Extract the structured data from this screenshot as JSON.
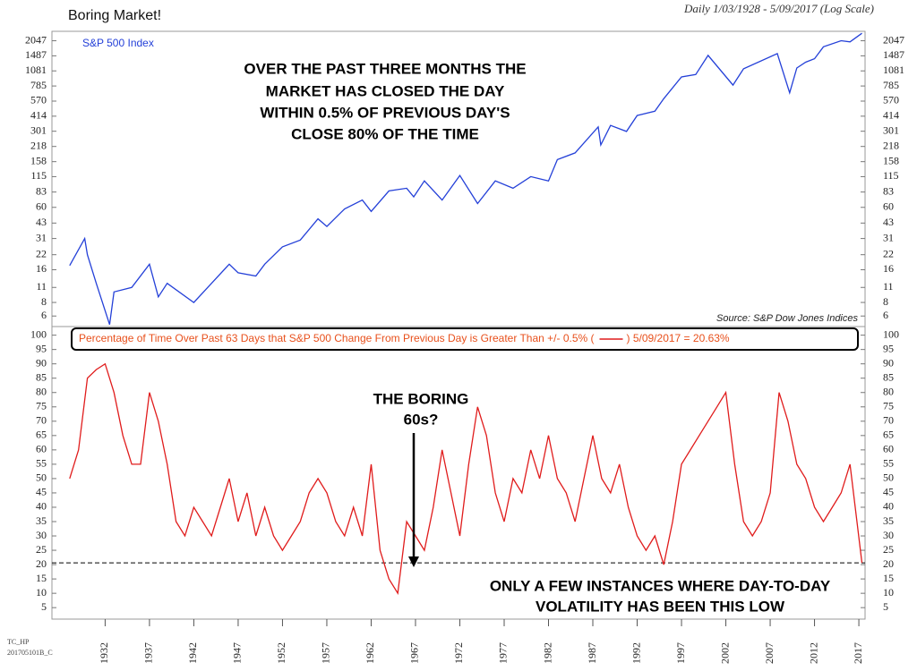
{
  "chart_data": [
    {
      "type": "line",
      "title": "Boring Market!",
      "subtitle": "Daily 1/03/1928 - 5/09/2017 (Log Scale)",
      "log_scale": true,
      "x": [
        1928,
        1929.7,
        1930,
        1931,
        1932.5,
        1933,
        1935,
        1937,
        1938,
        1939,
        1942,
        1944,
        1946,
        1947,
        1949,
        1950,
        1952,
        1954,
        1956,
        1957,
        1959,
        1961,
        1962,
        1964,
        1966,
        1966.8,
        1968,
        1970,
        1972,
        1974,
        1976,
        1978,
        1980,
        1982,
        1983,
        1985,
        1987.6,
        1987.9,
        1989,
        1990.8,
        1992,
        1994,
        1995,
        1997,
        1998.6,
        2000,
        2002.8,
        2004,
        2007.8,
        2009.2,
        2010,
        2011,
        2012,
        2013,
        2015,
        2016,
        2017.35
      ],
      "series": [
        {
          "name": "S&P 500 Index",
          "color": "#2440d8",
          "values": [
            17.5,
            31,
            22,
            12,
            5,
            10,
            11,
            18,
            9,
            12,
            8,
            12,
            18,
            15,
            14,
            18,
            26,
            30,
            47,
            40,
            58,
            70,
            55,
            85,
            90,
            75,
            105,
            70,
            118,
            65,
            105,
            90,
            115,
            105,
            165,
            190,
            330,
            225,
            340,
            300,
            420,
            460,
            600,
            950,
            1000,
            1500,
            800,
            1130,
            1560,
            680,
            1150,
            1300,
            1400,
            1800,
            2050,
            2000,
            2400
          ]
        }
      ],
      "xlim": [
        1926,
        2017.7
      ],
      "ylim": [
        4.8,
        2500
      ],
      "yticks": [
        6,
        8,
        11,
        16,
        22,
        31,
        43,
        60,
        83,
        115,
        158,
        218,
        301,
        414,
        570,
        785,
        1081,
        1487,
        2047
      ],
      "annotation": [
        "OVER THE PAST THREE MONTHS THE",
        "MARKET HAS CLOSED THE DAY",
        "WITHIN 0.5% OF PREVIOUS DAY'S",
        "CLOSE 80% OF THE TIME"
      ],
      "source": "Source: S&P Dow Jones Indices"
    },
    {
      "type": "line",
      "x": [
        1928,
        1929,
        1930,
        1931,
        1932,
        1933,
        1934,
        1935,
        1936,
        1937,
        1938,
        1939,
        1940,
        1941,
        1942,
        1943,
        1944,
        1945,
        1946,
        1947,
        1948,
        1949,
        1950,
        1951,
        1952,
        1953,
        1954,
        1955,
        1956,
        1957,
        1958,
        1959,
        1960,
        1961,
        1962,
        1963,
        1964,
        1965,
        1966,
        1967,
        1968,
        1969,
        1970,
        1971,
        1972,
        1973,
        1974,
        1975,
        1976,
        1977,
        1978,
        1979,
        1980,
        1981,
        1982,
        1983,
        1984,
        1985,
        1986,
        1987,
        1988,
        1989,
        1990,
        1991,
        1992,
        1993,
        1994,
        1995,
        1996,
        1997,
        1998,
        1999,
        2000,
        2001,
        2002,
        2003,
        2004,
        2005,
        2006,
        2007,
        2008,
        2009,
        2010,
        2011,
        2012,
        2013,
        2014,
        2015,
        2016,
        2017.35
      ],
      "series": [
        {
          "name": "Percentage of Time Over Past 63 Days that S&P 500 Change From Previous Day is Greater Than +/- 0.5% (",
          "color": "#e01c1c",
          "values": [
            50,
            60,
            85,
            88,
            90,
            80,
            65,
            55,
            55,
            80,
            70,
            55,
            35,
            30,
            40,
            35,
            30,
            40,
            50,
            35,
            45,
            30,
            40,
            30,
            25,
            30,
            35,
            45,
            50,
            45,
            35,
            30,
            40,
            30,
            55,
            25,
            15,
            10,
            35,
            30,
            25,
            40,
            60,
            45,
            30,
            55,
            75,
            65,
            45,
            35,
            50,
            45,
            60,
            50,
            65,
            50,
            45,
            35,
            50,
            65,
            50,
            45,
            55,
            40,
            30,
            25,
            30,
            20,
            35,
            55,
            60,
            65,
            70,
            75,
            80,
            55,
            35,
            30,
            35,
            45,
            80,
            70,
            55,
            50,
            40,
            35,
            40,
            45,
            55,
            20.63
          ]
        }
      ],
      "last_value_label": ") 5/09/2017 = 20.63%",
      "reference_value": 20.63,
      "xlim": [
        1926,
        2017.7
      ],
      "ylim": [
        1,
        103
      ],
      "xticks": [
        1932,
        1937,
        1942,
        1947,
        1952,
        1957,
        1962,
        1967,
        1972,
        1977,
        1982,
        1987,
        1992,
        1997,
        2002,
        2007,
        2012,
        2017
      ],
      "yticks": [
        5,
        10,
        15,
        20,
        25,
        30,
        35,
        40,
        45,
        50,
        55,
        60,
        65,
        70,
        75,
        80,
        85,
        90,
        95,
        100
      ],
      "annotations": [
        [
          "THE BORING",
          "60s?"
        ],
        [
          "ONLY A FEW INSTANCES WHERE DAY-TO-DAY",
          "VOLATILITY HAS BEEN THIS LOW"
        ]
      ]
    }
  ],
  "footer": [
    "TC_HP",
    "201705101B_C"
  ]
}
